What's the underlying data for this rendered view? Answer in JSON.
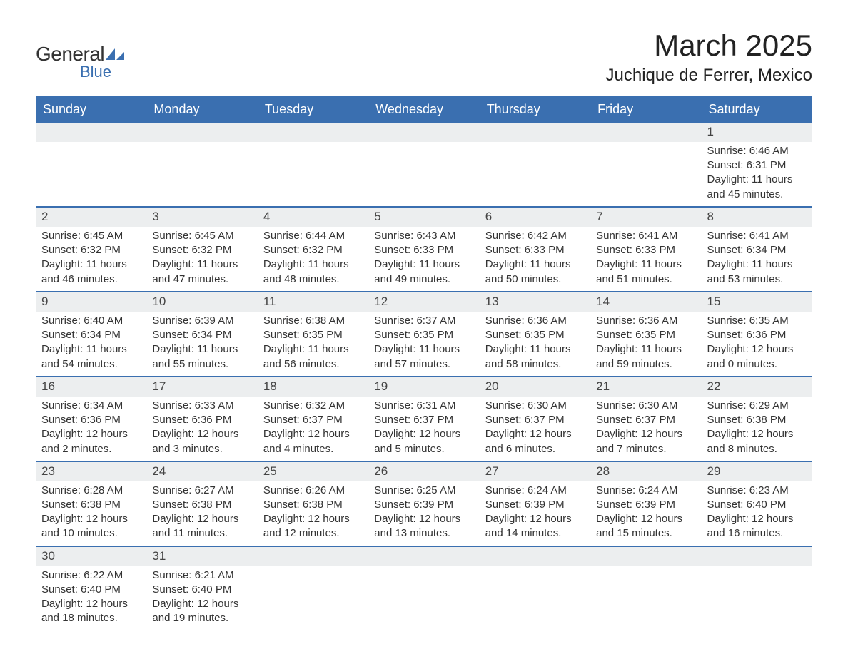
{
  "logo": {
    "text1": "General",
    "text2": "Blue"
  },
  "title": "March 2025",
  "location": "Juchique de Ferrer, Mexico",
  "colors": {
    "header_bg": "#3a6fb0",
    "header_text": "#ffffff",
    "daynum_bg": "#eceeef",
    "row_border": "#3a6fb0",
    "text": "#333333",
    "logo_blue": "#3a6fb0"
  },
  "fonts": {
    "title_size": 42,
    "location_size": 24,
    "header_size": 18,
    "body_size": 15,
    "daynum_size": 17
  },
  "days_of_week": [
    "Sunday",
    "Monday",
    "Tuesday",
    "Wednesday",
    "Thursday",
    "Friday",
    "Saturday"
  ],
  "weeks": [
    [
      null,
      null,
      null,
      null,
      null,
      null,
      {
        "n": "1",
        "sr": "Sunrise: 6:46 AM",
        "ss": "Sunset: 6:31 PM",
        "dl": "Daylight: 11 hours and 45 minutes."
      }
    ],
    [
      {
        "n": "2",
        "sr": "Sunrise: 6:45 AM",
        "ss": "Sunset: 6:32 PM",
        "dl": "Daylight: 11 hours and 46 minutes."
      },
      {
        "n": "3",
        "sr": "Sunrise: 6:45 AM",
        "ss": "Sunset: 6:32 PM",
        "dl": "Daylight: 11 hours and 47 minutes."
      },
      {
        "n": "4",
        "sr": "Sunrise: 6:44 AM",
        "ss": "Sunset: 6:32 PM",
        "dl": "Daylight: 11 hours and 48 minutes."
      },
      {
        "n": "5",
        "sr": "Sunrise: 6:43 AM",
        "ss": "Sunset: 6:33 PM",
        "dl": "Daylight: 11 hours and 49 minutes."
      },
      {
        "n": "6",
        "sr": "Sunrise: 6:42 AM",
        "ss": "Sunset: 6:33 PM",
        "dl": "Daylight: 11 hours and 50 minutes."
      },
      {
        "n": "7",
        "sr": "Sunrise: 6:41 AM",
        "ss": "Sunset: 6:33 PM",
        "dl": "Daylight: 11 hours and 51 minutes."
      },
      {
        "n": "8",
        "sr": "Sunrise: 6:41 AM",
        "ss": "Sunset: 6:34 PM",
        "dl": "Daylight: 11 hours and 53 minutes."
      }
    ],
    [
      {
        "n": "9",
        "sr": "Sunrise: 6:40 AM",
        "ss": "Sunset: 6:34 PM",
        "dl": "Daylight: 11 hours and 54 minutes."
      },
      {
        "n": "10",
        "sr": "Sunrise: 6:39 AM",
        "ss": "Sunset: 6:34 PM",
        "dl": "Daylight: 11 hours and 55 minutes."
      },
      {
        "n": "11",
        "sr": "Sunrise: 6:38 AM",
        "ss": "Sunset: 6:35 PM",
        "dl": "Daylight: 11 hours and 56 minutes."
      },
      {
        "n": "12",
        "sr": "Sunrise: 6:37 AM",
        "ss": "Sunset: 6:35 PM",
        "dl": "Daylight: 11 hours and 57 minutes."
      },
      {
        "n": "13",
        "sr": "Sunrise: 6:36 AM",
        "ss": "Sunset: 6:35 PM",
        "dl": "Daylight: 11 hours and 58 minutes."
      },
      {
        "n": "14",
        "sr": "Sunrise: 6:36 AM",
        "ss": "Sunset: 6:35 PM",
        "dl": "Daylight: 11 hours and 59 minutes."
      },
      {
        "n": "15",
        "sr": "Sunrise: 6:35 AM",
        "ss": "Sunset: 6:36 PM",
        "dl": "Daylight: 12 hours and 0 minutes."
      }
    ],
    [
      {
        "n": "16",
        "sr": "Sunrise: 6:34 AM",
        "ss": "Sunset: 6:36 PM",
        "dl": "Daylight: 12 hours and 2 minutes."
      },
      {
        "n": "17",
        "sr": "Sunrise: 6:33 AM",
        "ss": "Sunset: 6:36 PM",
        "dl": "Daylight: 12 hours and 3 minutes."
      },
      {
        "n": "18",
        "sr": "Sunrise: 6:32 AM",
        "ss": "Sunset: 6:37 PM",
        "dl": "Daylight: 12 hours and 4 minutes."
      },
      {
        "n": "19",
        "sr": "Sunrise: 6:31 AM",
        "ss": "Sunset: 6:37 PM",
        "dl": "Daylight: 12 hours and 5 minutes."
      },
      {
        "n": "20",
        "sr": "Sunrise: 6:30 AM",
        "ss": "Sunset: 6:37 PM",
        "dl": "Daylight: 12 hours and 6 minutes."
      },
      {
        "n": "21",
        "sr": "Sunrise: 6:30 AM",
        "ss": "Sunset: 6:37 PM",
        "dl": "Daylight: 12 hours and 7 minutes."
      },
      {
        "n": "22",
        "sr": "Sunrise: 6:29 AM",
        "ss": "Sunset: 6:38 PM",
        "dl": "Daylight: 12 hours and 8 minutes."
      }
    ],
    [
      {
        "n": "23",
        "sr": "Sunrise: 6:28 AM",
        "ss": "Sunset: 6:38 PM",
        "dl": "Daylight: 12 hours and 10 minutes."
      },
      {
        "n": "24",
        "sr": "Sunrise: 6:27 AM",
        "ss": "Sunset: 6:38 PM",
        "dl": "Daylight: 12 hours and 11 minutes."
      },
      {
        "n": "25",
        "sr": "Sunrise: 6:26 AM",
        "ss": "Sunset: 6:38 PM",
        "dl": "Daylight: 12 hours and 12 minutes."
      },
      {
        "n": "26",
        "sr": "Sunrise: 6:25 AM",
        "ss": "Sunset: 6:39 PM",
        "dl": "Daylight: 12 hours and 13 minutes."
      },
      {
        "n": "27",
        "sr": "Sunrise: 6:24 AM",
        "ss": "Sunset: 6:39 PM",
        "dl": "Daylight: 12 hours and 14 minutes."
      },
      {
        "n": "28",
        "sr": "Sunrise: 6:24 AM",
        "ss": "Sunset: 6:39 PM",
        "dl": "Daylight: 12 hours and 15 minutes."
      },
      {
        "n": "29",
        "sr": "Sunrise: 6:23 AM",
        "ss": "Sunset: 6:40 PM",
        "dl": "Daylight: 12 hours and 16 minutes."
      }
    ],
    [
      {
        "n": "30",
        "sr": "Sunrise: 6:22 AM",
        "ss": "Sunset: 6:40 PM",
        "dl": "Daylight: 12 hours and 18 minutes."
      },
      {
        "n": "31",
        "sr": "Sunrise: 6:21 AM",
        "ss": "Sunset: 6:40 PM",
        "dl": "Daylight: 12 hours and 19 minutes."
      },
      null,
      null,
      null,
      null,
      null
    ]
  ]
}
